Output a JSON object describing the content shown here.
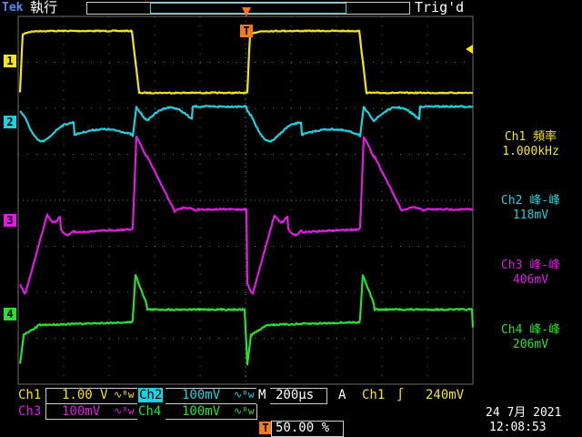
{
  "header": {
    "brand_prefix": "Tek",
    "run_state": "執行",
    "trigger_status": "Trig'd"
  },
  "colors": {
    "ch1": "#f4e41c",
    "ch2": "#1cd2e0",
    "ch3": "#e11ae4",
    "ch4": "#28e12c",
    "trigger": "#f07a1c",
    "grid": "#6d6d6d",
    "bg": "#000000"
  },
  "channel_markers": [
    "1",
    "2",
    "3",
    "4"
  ],
  "trigger_marker": "T",
  "measurements": [
    {
      "title": "Ch1 頻率",
      "value": "1.000kHz"
    },
    {
      "title": "Ch2 峰-峰",
      "value": "118mV"
    },
    {
      "title": "Ch3 峰-峰",
      "value": "406mV"
    },
    {
      "title": "Ch4 峰-峰",
      "value": "206mV"
    }
  ],
  "status_bar": {
    "ch1_label": "Ch1",
    "ch1_scale": "1.00 V",
    "ch2_label": "Ch2",
    "ch2_scale": "100mV",
    "ch3_label": "Ch3",
    "ch3_scale": "100mV",
    "ch4_label": "Ch4",
    "ch4_scale": "100mV",
    "bw_icon_text": "∿ᴮw",
    "timebase_label": "M",
    "timebase_value": "200µs",
    "trigger_mode": "A",
    "trigger_source": "Ch1",
    "trigger_slope_symbol": "∫",
    "trigger_level": "240mV",
    "trigger_position_marker": "T",
    "trigger_position": "50.00 %"
  },
  "datetime": {
    "date": "24 7月 2021",
    "time": "12:08:53"
  }
}
